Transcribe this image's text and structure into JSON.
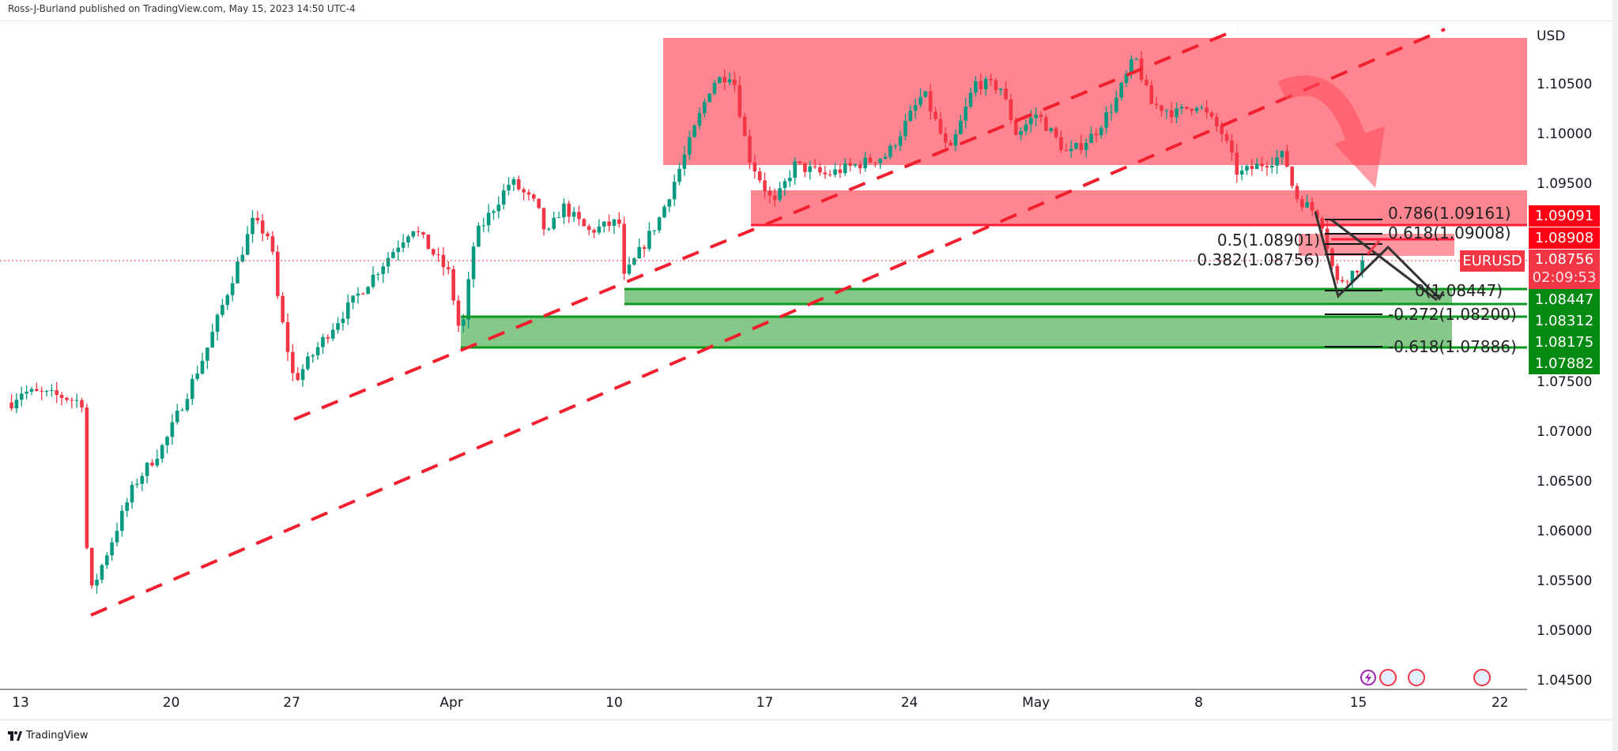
{
  "header": {
    "text": "Ross-J-Burland published on TradingView.com, May 15, 2023 14:50 UTC-4"
  },
  "footer": {
    "brand": "TradingView"
  },
  "colors": {
    "up": "#089981",
    "down": "#f23645",
    "resistance_zone": "#ff8590",
    "support_zone": "#85c88a",
    "support_line": "#0a9a1f"
  },
  "chart_data": {
    "type": "candlestick",
    "symbol": "EURUSD",
    "currency": "USD",
    "ylim": [
      1.045,
      1.112
    ],
    "y_ticks": [
      "1.10500",
      "1.10000",
      "1.09500",
      "1.07500",
      "1.07000",
      "1.06500",
      "1.06000",
      "1.05500",
      "1.05000",
      "1.04500"
    ],
    "y_tick_values": [
      1.105,
      1.1,
      1.095,
      1.075,
      1.07,
      1.065,
      1.06,
      1.055,
      1.05,
      1.045
    ],
    "x_unit": "trading days since Mar 13",
    "x_ticks": [
      {
        "label": "13",
        "t": 0
      },
      {
        "label": "20",
        "t": 5
      },
      {
        "label": "27",
        "t": 9.0
      },
      {
        "label": "Apr",
        "t": 14.3
      },
      {
        "label": "10",
        "t": 19.7
      },
      {
        "label": "17",
        "t": 24.7
      },
      {
        "label": "24",
        "t": 29.5
      },
      {
        "label": "May",
        "t": 33.7
      },
      {
        "label": "8",
        "t": 39.1
      },
      {
        "label": "15",
        "t": 44.4
      },
      {
        "label": "22",
        "t": 49.1
      }
    ],
    "price_path": [
      [
        -0.3,
        1.073
      ],
      [
        0,
        1.0741
      ],
      [
        1.37,
        1.0736
      ],
      [
        2.05,
        1.073
      ],
      [
        2.23,
        1.0554
      ],
      [
        2.33,
        1.0538
      ],
      [
        3.77,
        1.0647
      ],
      [
        4.79,
        1.0689
      ],
      [
        6.16,
        1.0782
      ],
      [
        7.71,
        1.0912
      ],
      [
        8.29,
        1.0896
      ],
      [
        8.56,
        1.0829
      ],
      [
        9.08,
        1.0751
      ],
      [
        10.27,
        1.0803
      ],
      [
        11.64,
        1.0855
      ],
      [
        13.01,
        1.0907
      ],
      [
        14.21,
        1.086
      ],
      [
        14.62,
        1.0793
      ],
      [
        15.07,
        1.0896
      ],
      [
        16.27,
        1.0953
      ],
      [
        17.12,
        1.0928
      ],
      [
        17.47,
        1.0896
      ],
      [
        17.98,
        1.0928
      ],
      [
        18.84,
        1.0902
      ],
      [
        19.86,
        1.0912
      ],
      [
        20.03,
        1.0855
      ],
      [
        21.23,
        1.0917
      ],
      [
        21.92,
        1.0969
      ],
      [
        22.95,
        1.1052
      ],
      [
        23.63,
        1.1062
      ],
      [
        24.14,
        1.0979
      ],
      [
        25.0,
        1.0928
      ],
      [
        25.68,
        1.0969
      ],
      [
        26.71,
        1.0959
      ],
      [
        27.74,
        1.0969
      ],
      [
        28.77,
        1.0979
      ],
      [
        29.97,
        1.1042
      ],
      [
        30.82,
        1.0979
      ],
      [
        31.68,
        1.1052
      ],
      [
        32.53,
        1.1047
      ],
      [
        33.05,
        1.1
      ],
      [
        33.73,
        1.1021
      ],
      [
        34.76,
        1.0979
      ],
      [
        35.62,
        1.1
      ],
      [
        36.3,
        1.1031
      ],
      [
        36.99,
        1.1078
      ],
      [
        37.5,
        1.1031
      ],
      [
        38.36,
        1.1021
      ],
      [
        39.04,
        1.1031
      ],
      [
        39.9,
        1.1
      ],
      [
        40.41,
        1.0959
      ],
      [
        41.1,
        1.0969
      ],
      [
        41.95,
        1.0979
      ],
      [
        42.29,
        1.0938
      ],
      [
        43.15,
        1.0917
      ],
      [
        43.66,
        1.085
      ],
      [
        44.18,
        1.086
      ],
      [
        44.69,
        1.08756
      ]
    ],
    "price_labels": [
      {
        "value": "1.09091",
        "kind": "resistance"
      },
      {
        "value": "1.08908",
        "kind": "resistance"
      },
      {
        "value": "1.08756",
        "kind": "last",
        "symbol": "EURUSD",
        "countdown": "02:09:53"
      },
      {
        "value": "1.08447",
        "kind": "support"
      },
      {
        "value": "1.08312",
        "kind": "support"
      },
      {
        "value": "1.08175",
        "kind": "support"
      },
      {
        "value": "1.07882",
        "kind": "support"
      }
    ],
    "fib_levels": [
      {
        "label": "0.786(1.09161)"
      },
      {
        "label": "0.618(1.09008)"
      },
      {
        "label": "0.5(1.08901)"
      },
      {
        "label": "0.382(1.08756)"
      },
      {
        "label": "0(1.08447)"
      },
      {
        "label": "-0.272(1.08200)"
      },
      {
        "label": "-0.618(1.07886)"
      }
    ]
  }
}
